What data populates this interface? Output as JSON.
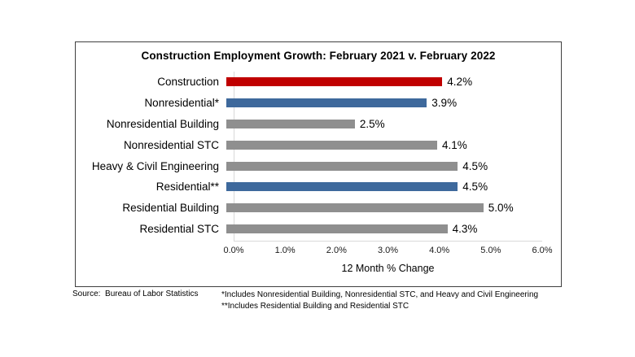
{
  "footer": {
    "source": "Source:  Bureau of Labor Statistics",
    "footnote_nonresidential": "*Includes Nonresidential Building, Nonresidential STC, and Heavy and Civil Engineering",
    "footnote_residential": "**Includes Residential Building and Residential STC"
  },
  "colors": {
    "construction_red": "#c00000",
    "aggregate_blue": "#3e699c",
    "detail_gray": "#8f8f8f",
    "axis_line_gray": "#d9d9d9"
  },
  "chart_data": {
    "type": "bar",
    "orientation": "horizontal",
    "title": "Construction Employment Growth: February 2021 v. February 2022",
    "categories": [
      "Construction",
      "Nonresidential*",
      "Nonresidential Building",
      "Nonresidential STC",
      "Heavy & Civil Engineering",
      "Residential**",
      "Residential Building",
      "Residential STC"
    ],
    "values": [
      4.2,
      3.9,
      2.5,
      4.1,
      4.5,
      4.5,
      5.0,
      4.3
    ],
    "value_labels": [
      "4.2%",
      "3.9%",
      "2.5%",
      "4.1%",
      "4.5%",
      "4.5%",
      "5.0%",
      "4.3%"
    ],
    "bar_colors": [
      "#c00000",
      "#3e699c",
      "#8f8f8f",
      "#8f8f8f",
      "#8f8f8f",
      "#3e699c",
      "#8f8f8f",
      "#8f8f8f"
    ],
    "xlabel": "12 Month % Change",
    "xlim": [
      0,
      6
    ],
    "xticks": [
      "0.0%",
      "1.0%",
      "2.0%",
      "3.0%",
      "4.0%",
      "5.0%",
      "6.0%"
    ],
    "grid": false,
    "legend": false
  }
}
